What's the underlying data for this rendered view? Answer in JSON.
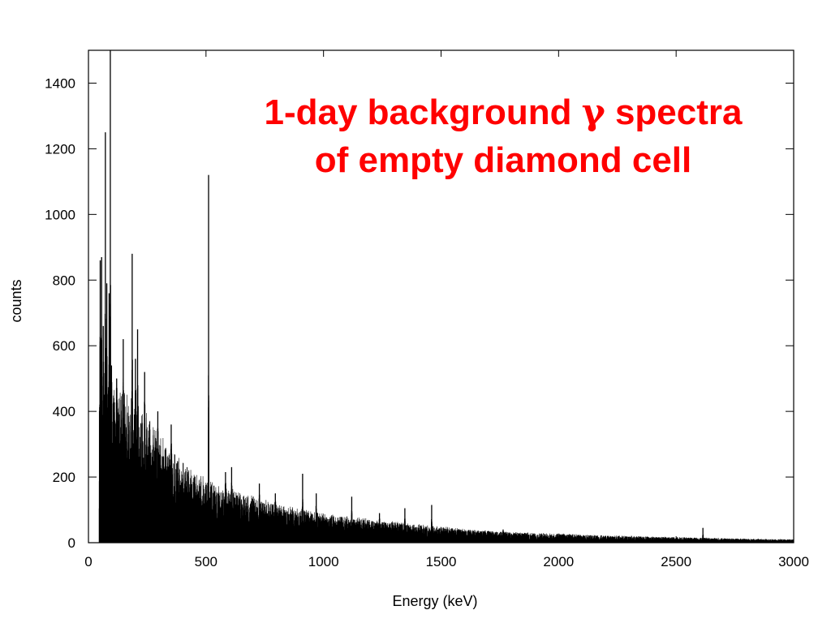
{
  "chart_data": {
    "type": "line",
    "title": "",
    "xlabel": "Energy (keV)",
    "ylabel": "counts",
    "xlim": [
      0,
      3000
    ],
    "ylim": [
      0,
      1500
    ],
    "xticks": [
      0,
      500,
      1000,
      1500,
      2000,
      2500,
      3000
    ],
    "yticks": [
      0,
      200,
      400,
      600,
      800,
      1000,
      1200,
      1400
    ],
    "xtick_labels": [
      "0",
      "500",
      "1000",
      "1500",
      "2000",
      "2500",
      "3000"
    ],
    "ytick_labels": [
      "0",
      "200",
      "400",
      "600",
      "800",
      "1000",
      "1200",
      "1400"
    ],
    "grid": false,
    "line_color": "#000000",
    "annotation": {
      "line1_prefix": "1-day background ",
      "gamma_symbol": "γ",
      "line1_suffix": " spectra",
      "line2": "of empty diamond cell",
      "color": "#ff0000"
    },
    "series": [
      {
        "kind": "continuum",
        "energy_start_keV": 45,
        "energy_end_keV": 3000,
        "envelope": [
          [
            45,
            520
          ],
          [
            60,
            500
          ],
          [
            100,
            470
          ],
          [
            150,
            450
          ],
          [
            200,
            420
          ],
          [
            250,
            370
          ],
          [
            300,
            320
          ],
          [
            350,
            280
          ],
          [
            400,
            240
          ],
          [
            450,
            210
          ],
          [
            500,
            190
          ],
          [
            600,
            160
          ],
          [
            700,
            135
          ],
          [
            800,
            115
          ],
          [
            900,
            100
          ],
          [
            1000,
            88
          ],
          [
            1200,
            70
          ],
          [
            1400,
            55
          ],
          [
            1600,
            40
          ],
          [
            1800,
            32
          ],
          [
            2000,
            27
          ],
          [
            2200,
            22
          ],
          [
            2400,
            18
          ],
          [
            2600,
            15
          ],
          [
            2800,
            12
          ],
          [
            3000,
            10
          ]
        ],
        "peaks": [
          [
            50,
            860
          ],
          [
            56,
            870
          ],
          [
            63,
            660
          ],
          [
            72,
            1250
          ],
          [
            78,
            790
          ],
          [
            88,
            760
          ],
          [
            93,
            1500
          ],
          [
            98,
            540
          ],
          [
            120,
            500
          ],
          [
            148,
            620
          ],
          [
            186,
            880
          ],
          [
            200,
            560
          ],
          [
            209,
            650
          ],
          [
            239,
            520
          ],
          [
            295,
            400
          ],
          [
            352,
            360
          ],
          [
            511,
            1120
          ],
          [
            583,
            215
          ],
          [
            609,
            230
          ],
          [
            727,
            180
          ],
          [
            795,
            150
          ],
          [
            911,
            210
          ],
          [
            969,
            150
          ],
          [
            1120,
            140
          ],
          [
            1238,
            90
          ],
          [
            1346,
            105
          ],
          [
            1460,
            115
          ],
          [
            1764,
            40
          ],
          [
            2614,
            45
          ]
        ]
      }
    ]
  }
}
